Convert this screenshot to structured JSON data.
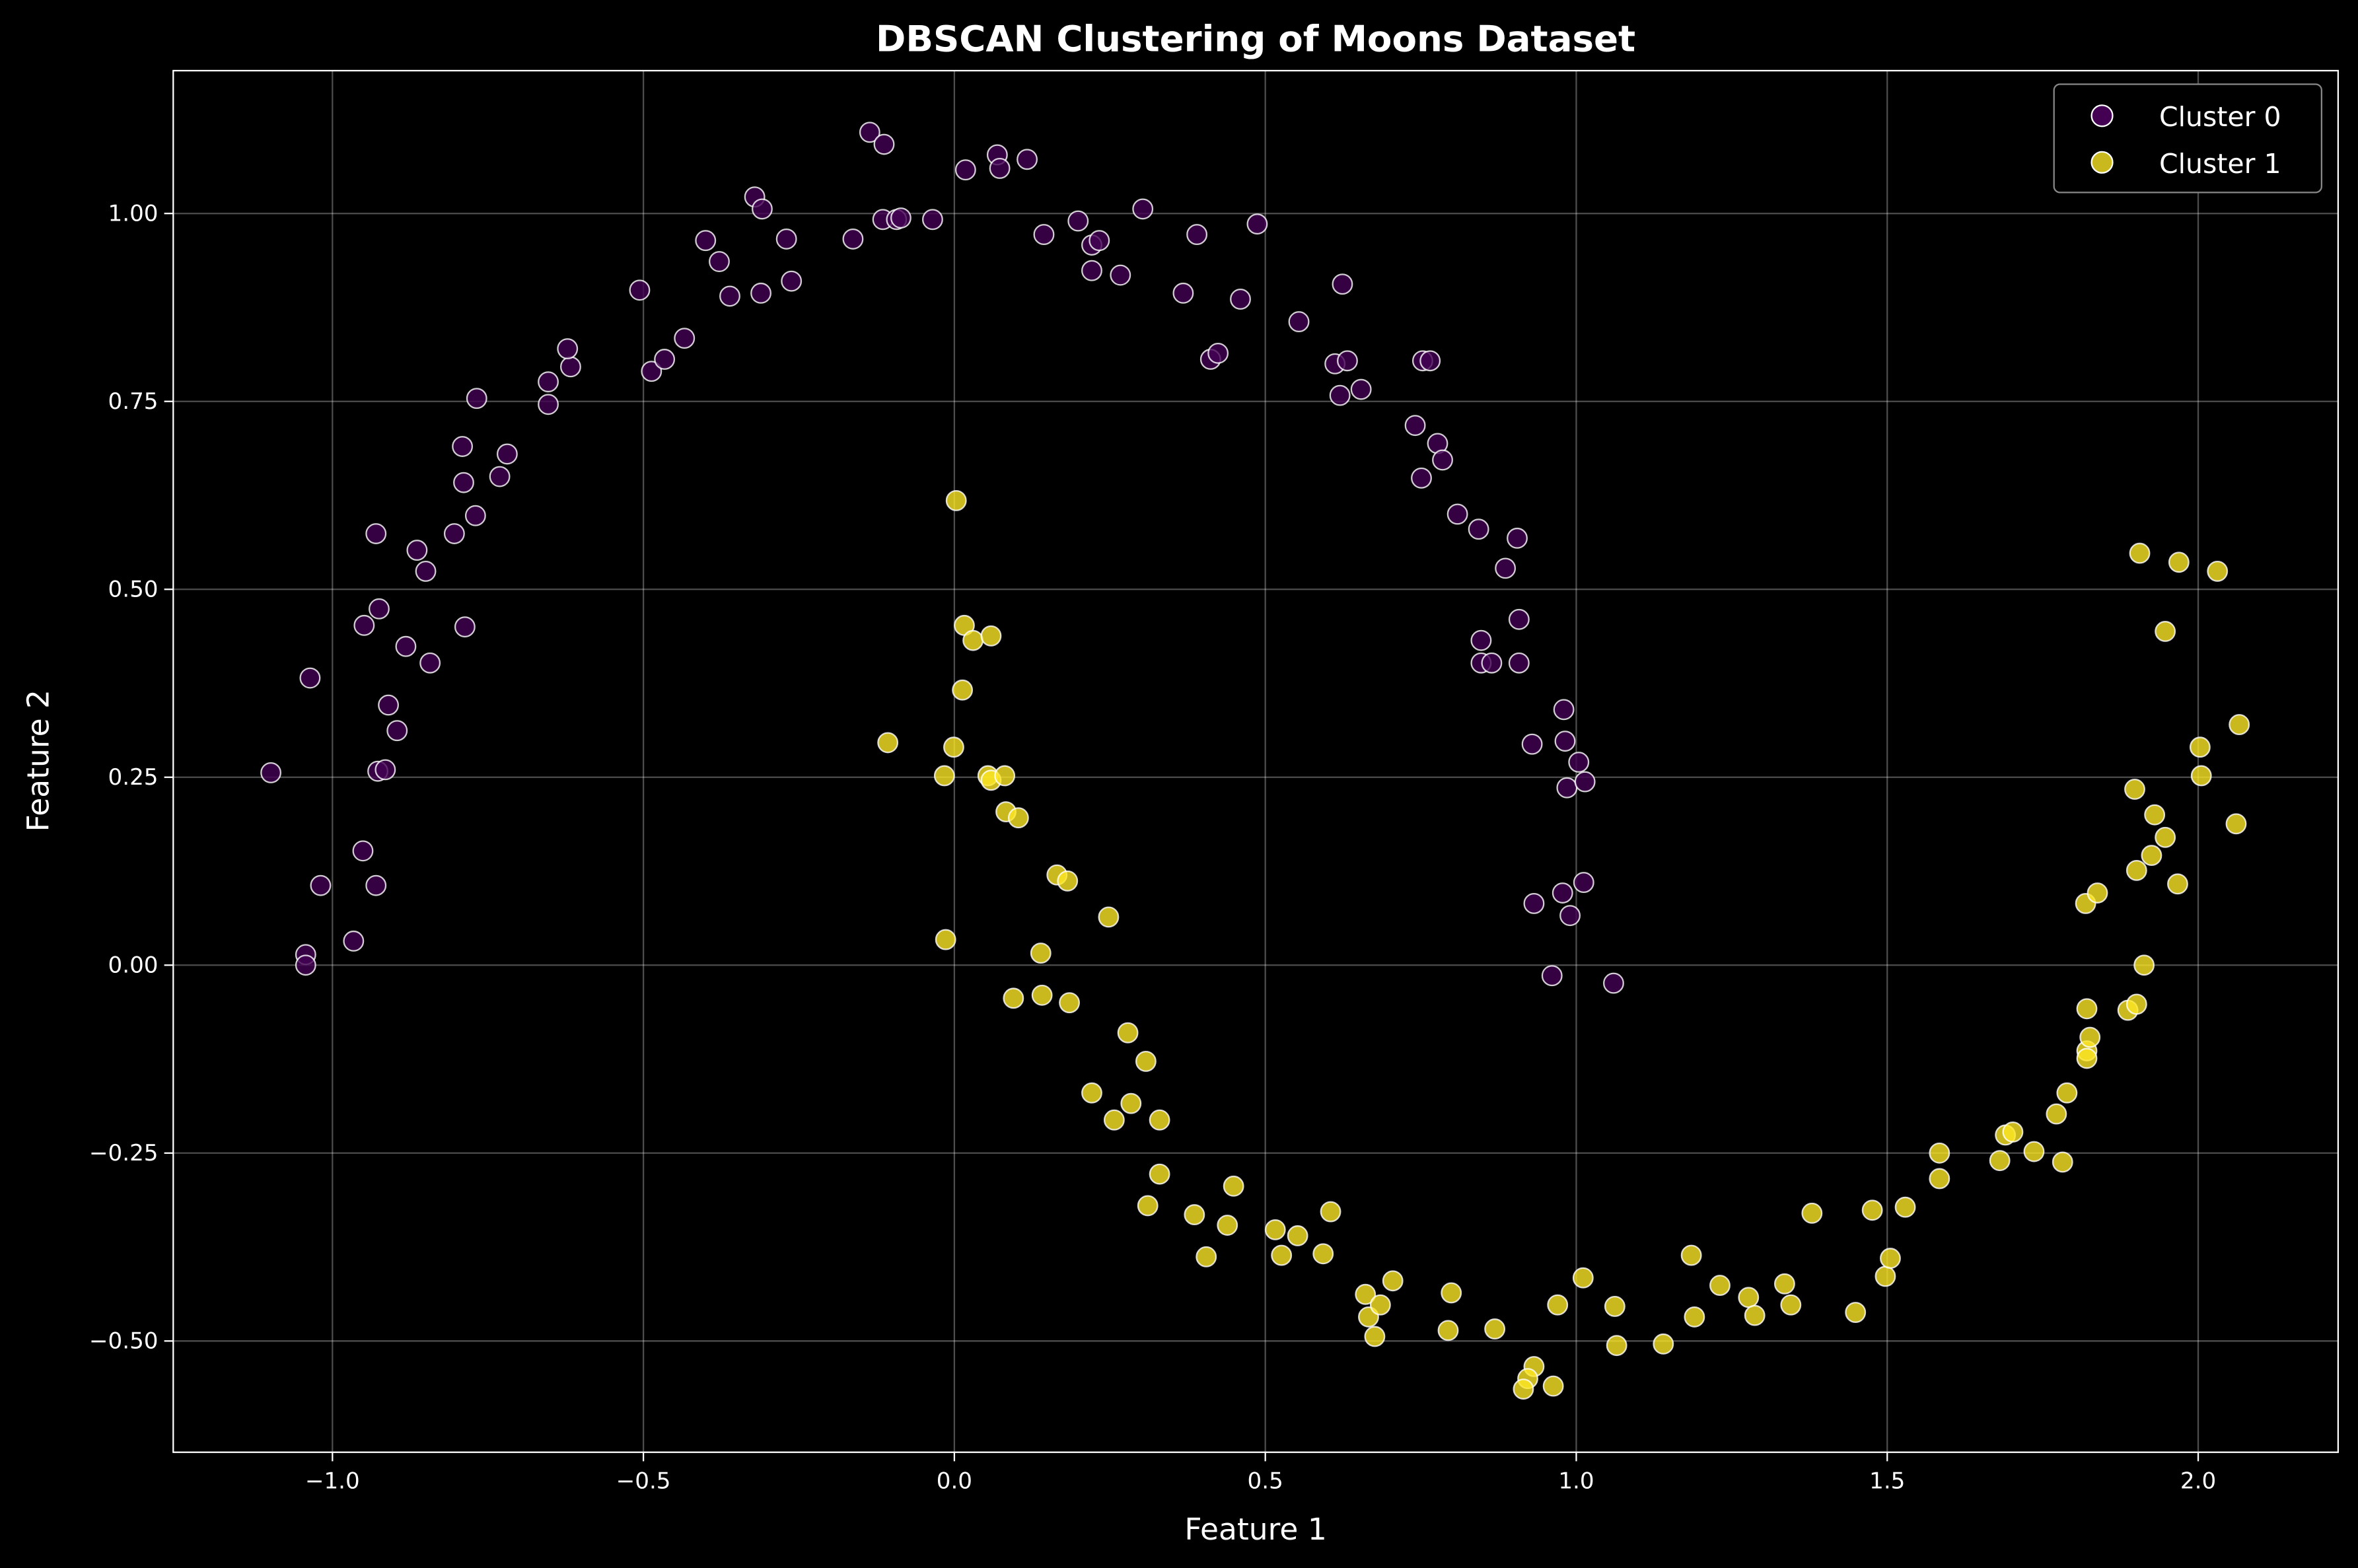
{
  "chart_data": {
    "type": "scatter",
    "title": "DBSCAN Clustering of Moons Dataset",
    "xlabel": "Feature 1",
    "ylabel": "Feature 2",
    "xlim": [
      -1.256,
      2.225
    ],
    "ylim": [
      -0.648,
      1.19
    ],
    "xticks": [
      -1.0,
      -0.5,
      0.0,
      0.5,
      1.0,
      1.5,
      2.0
    ],
    "xtick_labels": [
      "−1.0",
      "−0.5",
      "0.0",
      "0.5",
      "1.0",
      "1.5",
      "2.0"
    ],
    "yticks": [
      -0.5,
      -0.25,
      0.0,
      0.25,
      0.5,
      0.75,
      1.0
    ],
    "ytick_labels": [
      "−0.50",
      "−0.25",
      "0.00",
      "0.25",
      "0.50",
      "0.75",
      "1.00"
    ],
    "grid": true,
    "legend_position": "top-right",
    "series": [
      {
        "name": "Cluster 0",
        "color": "#440154",
        "points": [
          [
            -1.099,
            0.256
          ],
          [
            -1.036,
            0.382
          ],
          [
            -1.019,
            0.106
          ],
          [
            -1.043,
            0.014
          ],
          [
            -1.043,
            0.0
          ],
          [
            -0.966,
            0.032
          ],
          [
            -0.951,
            0.152
          ],
          [
            -0.93,
            0.106
          ],
          [
            -0.927,
            0.258
          ],
          [
            -0.915,
            0.26
          ],
          [
            -0.896,
            0.312
          ],
          [
            -0.91,
            0.346
          ],
          [
            -0.949,
            0.452
          ],
          [
            -0.925,
            0.474
          ],
          [
            -0.93,
            0.574
          ],
          [
            -0.882,
            0.424
          ],
          [
            -0.843,
            0.402
          ],
          [
            -0.864,
            0.552
          ],
          [
            -0.85,
            0.524
          ],
          [
            -0.787,
            0.45
          ],
          [
            -0.804,
            0.574
          ],
          [
            -0.77,
            0.598
          ],
          [
            -0.789,
            0.642
          ],
          [
            -0.791,
            0.69
          ],
          [
            -0.731,
            0.65
          ],
          [
            -0.719,
            0.68
          ],
          [
            -0.768,
            0.754
          ],
          [
            -0.653,
            0.746
          ],
          [
            -0.653,
            0.776
          ],
          [
            -0.617,
            0.796
          ],
          [
            -0.622,
            0.82
          ],
          [
            -0.506,
            0.898
          ],
          [
            -0.487,
            0.79
          ],
          [
            -0.466,
            0.806
          ],
          [
            -0.434,
            0.834
          ],
          [
            -0.4,
            0.964
          ],
          [
            -0.378,
            0.936
          ],
          [
            -0.361,
            0.89
          ],
          [
            -0.311,
            0.894
          ],
          [
            -0.321,
            1.022
          ],
          [
            -0.309,
            1.006
          ],
          [
            -0.27,
            0.966
          ],
          [
            -0.262,
            0.91
          ],
          [
            -0.163,
            0.966
          ],
          [
            -0.136,
            1.108
          ],
          [
            -0.113,
            1.092
          ],
          [
            -0.115,
            0.992
          ],
          [
            -0.093,
            0.992
          ],
          [
            -0.086,
            0.994
          ],
          [
            -0.035,
            0.992
          ],
          [
            0.018,
            1.058
          ],
          [
            0.069,
            1.078
          ],
          [
            0.073,
            1.06
          ],
          [
            0.117,
            1.072
          ],
          [
            0.144,
            0.972
          ],
          [
            0.199,
            0.99
          ],
          [
            0.221,
            0.958
          ],
          [
            0.233,
            0.964
          ],
          [
            0.221,
            0.924
          ],
          [
            0.267,
            0.918
          ],
          [
            0.303,
            1.006
          ],
          [
            0.368,
            0.894
          ],
          [
            0.39,
            0.972
          ],
          [
            0.412,
            0.806
          ],
          [
            0.424,
            0.814
          ],
          [
            0.46,
            0.886
          ],
          [
            0.487,
            0.986
          ],
          [
            0.554,
            0.856
          ],
          [
            0.612,
            0.8
          ],
          [
            0.632,
            0.804
          ],
          [
            0.62,
            0.758
          ],
          [
            0.624,
            0.906
          ],
          [
            0.654,
            0.766
          ],
          [
            0.741,
            0.718
          ],
          [
            0.753,
            0.804
          ],
          [
            0.765,
            0.804
          ],
          [
            0.751,
            0.648
          ],
          [
            0.777,
            0.694
          ],
          [
            0.785,
            0.672
          ],
          [
            0.809,
            0.6
          ],
          [
            0.843,
            0.58
          ],
          [
            0.905,
            0.568
          ],
          [
            0.886,
            0.528
          ],
          [
            0.908,
            0.46
          ],
          [
            0.847,
            0.432
          ],
          [
            0.847,
            0.402
          ],
          [
            0.864,
            0.402
          ],
          [
            0.908,
            0.402
          ],
          [
            0.98,
            0.34
          ],
          [
            0.982,
            0.298
          ],
          [
            0.929,
            0.294
          ],
          [
            1.004,
            0.27
          ],
          [
            0.985,
            0.236
          ],
          [
            1.014,
            0.244
          ],
          [
            1.012,
            0.11
          ],
          [
            0.978,
            0.096
          ],
          [
            0.932,
            0.082
          ],
          [
            0.99,
            0.066
          ],
          [
            0.961,
            -0.014
          ],
          [
            1.06,
            -0.024
          ]
        ]
      },
      {
        "name": "Cluster 1",
        "color": "#fde725",
        "points": [
          [
            0.003,
            0.618
          ],
          [
            0.016,
            0.452
          ],
          [
            0.03,
            0.432
          ],
          [
            0.059,
            0.438
          ],
          [
            0.013,
            0.366
          ],
          [
            -0.107,
            0.296
          ],
          [
            -0.001,
            0.29
          ],
          [
            -0.016,
            0.252
          ],
          [
            0.054,
            0.252
          ],
          [
            0.059,
            0.246
          ],
          [
            0.081,
            0.252
          ],
          [
            0.083,
            0.204
          ],
          [
            0.103,
            0.196
          ],
          [
            -0.014,
            0.034
          ],
          [
            0.095,
            -0.044
          ],
          [
            0.165,
            0.12
          ],
          [
            0.182,
            0.112
          ],
          [
            0.139,
            0.016
          ],
          [
            0.141,
            -0.04
          ],
          [
            0.185,
            -0.05
          ],
          [
            0.248,
            0.064
          ],
          [
            0.279,
            -0.09
          ],
          [
            0.221,
            -0.17
          ],
          [
            0.257,
            -0.206
          ],
          [
            0.284,
            -0.184
          ],
          [
            0.308,
            -0.128
          ],
          [
            0.33,
            -0.206
          ],
          [
            0.33,
            -0.278
          ],
          [
            0.311,
            -0.32
          ],
          [
            0.386,
            -0.332
          ],
          [
            0.449,
            -0.294
          ],
          [
            0.439,
            -0.346
          ],
          [
            0.405,
            -0.388
          ],
          [
            0.516,
            -0.352
          ],
          [
            0.526,
            -0.386
          ],
          [
            0.552,
            -0.36
          ],
          [
            0.593,
            -0.384
          ],
          [
            0.605,
            -0.328
          ],
          [
            0.661,
            -0.438
          ],
          [
            0.666,
            -0.468
          ],
          [
            0.685,
            -0.452
          ],
          [
            0.676,
            -0.494
          ],
          [
            0.705,
            -0.42
          ],
          [
            0.799,
            -0.436
          ],
          [
            0.794,
            -0.486
          ],
          [
            0.869,
            -0.484
          ],
          [
            0.932,
            -0.534
          ],
          [
            0.922,
            -0.55
          ],
          [
            0.915,
            -0.564
          ],
          [
            0.963,
            -0.56
          ],
          [
            0.97,
            -0.452
          ],
          [
            1.011,
            -0.416
          ],
          [
            1.062,
            -0.454
          ],
          [
            1.065,
            -0.506
          ],
          [
            1.14,
            -0.504
          ],
          [
            1.185,
            -0.386
          ],
          [
            1.19,
            -0.468
          ],
          [
            1.231,
            -0.426
          ],
          [
            1.277,
            -0.442
          ],
          [
            1.287,
            -0.466
          ],
          [
            1.335,
            -0.424
          ],
          [
            1.345,
            -0.452
          ],
          [
            1.379,
            -0.33
          ],
          [
            1.449,
            -0.462
          ],
          [
            1.476,
            -0.326
          ],
          [
            1.497,
            -0.414
          ],
          [
            1.505,
            -0.39
          ],
          [
            1.529,
            -0.322
          ],
          [
            1.584,
            -0.25
          ],
          [
            1.584,
            -0.284
          ],
          [
            1.681,
            -0.26
          ],
          [
            1.69,
            -0.226
          ],
          [
            1.702,
            -0.222
          ],
          [
            1.736,
            -0.248
          ],
          [
            1.772,
            -0.198
          ],
          [
            1.782,
            -0.262
          ],
          [
            1.789,
            -0.17
          ],
          [
            1.821,
            -0.114
          ],
          [
            1.821,
            -0.124
          ],
          [
            1.826,
            -0.096
          ],
          [
            1.821,
            -0.058
          ],
          [
            1.819,
            0.082
          ],
          [
            1.838,
            0.096
          ],
          [
            1.887,
            -0.06
          ],
          [
            1.901,
            -0.052
          ],
          [
            1.913,
            0.0
          ],
          [
            1.901,
            0.126
          ],
          [
            1.925,
            0.146
          ],
          [
            1.898,
            0.234
          ],
          [
            1.93,
            0.2
          ],
          [
            1.947,
            0.17
          ],
          [
            1.967,
            0.108
          ],
          [
            2.003,
            0.29
          ],
          [
            2.005,
            0.252
          ],
          [
            2.066,
            0.32
          ],
          [
            2.061,
            0.188
          ],
          [
            1.947,
            0.444
          ],
          [
            1.906,
            0.548
          ],
          [
            1.969,
            0.536
          ],
          [
            2.031,
            0.524
          ]
        ]
      }
    ]
  }
}
